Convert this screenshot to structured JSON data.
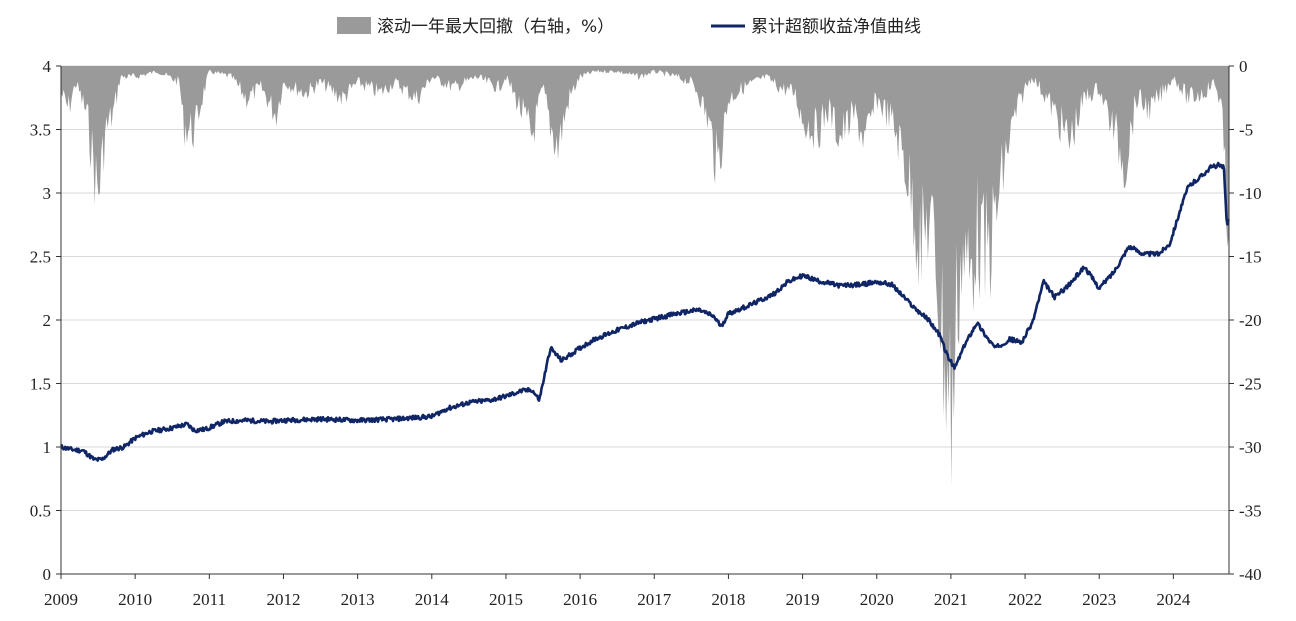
{
  "chart_data": {
    "type": "line",
    "title": "",
    "legend": {
      "placement": "top-center",
      "drawdown_label": "滚动一年最大回撤（右轴，%）",
      "nav_label": "累计超额收益净值曲线"
    },
    "colors": {
      "drawdown": "#9a9a9a",
      "nav": "#0f2566",
      "grid": "#d9d9d9"
    },
    "grid": true,
    "left_axis": {
      "ylim": [
        0,
        4
      ],
      "ticks": [
        "0",
        "0.5",
        "1",
        "1.5",
        "2",
        "2.5",
        "3",
        "3.5",
        "4"
      ]
    },
    "right_axis": {
      "ylim": [
        -40,
        0
      ],
      "ticks": [
        "-40",
        "-35",
        "-30",
        "-25",
        "-20",
        "-15",
        "-10",
        "-5",
        "0"
      ]
    },
    "x_axis": {
      "xlim": [
        2009.0,
        2024.75
      ],
      "ticks": [
        "2009",
        "2010",
        "2011",
        "2012",
        "2013",
        "2014",
        "2015",
        "2016",
        "2017",
        "2018",
        "2019",
        "2020",
        "2021",
        "2022",
        "2023",
        "2024"
      ]
    },
    "series": [
      {
        "name": "累计超额收益净值曲线",
        "axis": "left",
        "x": [
          2009.0,
          2009.15,
          2009.3,
          2009.45,
          2009.55,
          2009.7,
          2009.85,
          2010.0,
          2010.2,
          2010.5,
          2010.7,
          2010.8,
          2010.95,
          2011.2,
          2011.5,
          2011.8,
          2012.0,
          2012.5,
          2013.0,
          2013.5,
          2014.0,
          2014.2,
          2014.5,
          2014.8,
          2015.0,
          2015.2,
          2015.35,
          2015.45,
          2015.6,
          2015.75,
          2016.0,
          2016.2,
          2016.5,
          2016.8,
          2017.0,
          2017.3,
          2017.6,
          2017.8,
          2017.9,
          2018.0,
          2018.3,
          2018.6,
          2018.8,
          2019.0,
          2019.2,
          2019.5,
          2019.8,
          2020.0,
          2020.2,
          2020.5,
          2020.7,
          2020.85,
          2020.95,
          2021.05,
          2021.2,
          2021.35,
          2021.5,
          2021.6,
          2021.8,
          2021.95,
          2022.1,
          2022.25,
          2022.4,
          2022.6,
          2022.8,
          2023.0,
          2023.2,
          2023.4,
          2023.6,
          2023.8,
          2023.95,
          2024.1,
          2024.2,
          2024.35,
          2024.5,
          2024.6,
          2024.68,
          2024.72,
          2024.75
        ],
        "values": [
          1.0,
          0.98,
          0.97,
          0.9,
          0.9,
          0.98,
          1.0,
          1.07,
          1.12,
          1.15,
          1.18,
          1.13,
          1.14,
          1.2,
          1.21,
          1.2,
          1.21,
          1.22,
          1.21,
          1.22,
          1.24,
          1.3,
          1.35,
          1.37,
          1.4,
          1.44,
          1.45,
          1.37,
          1.78,
          1.68,
          1.78,
          1.85,
          1.92,
          1.98,
          2.01,
          2.05,
          2.08,
          2.03,
          1.95,
          2.05,
          2.12,
          2.2,
          2.3,
          2.35,
          2.31,
          2.27,
          2.28,
          2.3,
          2.28,
          2.1,
          2.0,
          1.88,
          1.72,
          1.62,
          1.82,
          1.98,
          1.85,
          1.78,
          1.85,
          1.82,
          1.98,
          2.3,
          2.18,
          2.28,
          2.42,
          2.25,
          2.38,
          2.58,
          2.52,
          2.52,
          2.6,
          2.88,
          3.05,
          3.12,
          3.2,
          3.22,
          3.2,
          2.75,
          2.8
        ]
      },
      {
        "name": "滚动一年最大回撤（右轴，%）",
        "axis": "right",
        "x": [
          2009.0,
          2009.1,
          2009.2,
          2009.35,
          2009.45,
          2009.5,
          2009.6,
          2009.7,
          2009.8,
          2010.0,
          2010.3,
          2010.6,
          2010.65,
          2010.8,
          2010.9,
          2011.0,
          2011.3,
          2011.5,
          2011.7,
          2011.9,
          2012.0,
          2012.3,
          2012.5,
          2012.8,
          2013.0,
          2013.3,
          2013.5,
          2013.8,
          2014.0,
          2014.3,
          2014.6,
          2014.9,
          2015.0,
          2015.2,
          2015.35,
          2015.5,
          2015.6,
          2015.7,
          2015.85,
          2016.0,
          2016.2,
          2016.5,
          2016.8,
          2017.0,
          2017.3,
          2017.5,
          2017.6,
          2017.75,
          2017.85,
          2018.0,
          2018.2,
          2018.5,
          2018.7,
          2018.9,
          2019.0,
          2019.2,
          2019.35,
          2019.5,
          2019.7,
          2019.85,
          2020.0,
          2020.2,
          2020.35,
          2020.5,
          2020.6,
          2020.7,
          2020.8,
          2020.9,
          2020.97,
          2021.02,
          2021.08,
          2021.15,
          2021.25,
          2021.35,
          2021.45,
          2021.55,
          2021.65,
          2021.75,
          2021.85,
          2022.0,
          2022.1,
          2022.3,
          2022.45,
          2022.6,
          2022.8,
          2023.0,
          2023.2,
          2023.35,
          2023.5,
          2023.7,
          2023.9,
          2024.0,
          2024.2,
          2024.4,
          2024.55,
          2024.65,
          2024.72,
          2024.75
        ],
        "values": [
          -2.5,
          -4.0,
          -1.5,
          -4.5,
          -9.5,
          -12.0,
          -6.0,
          -4.5,
          -1.0,
          -1.0,
          -0.5,
          -1.5,
          -5.5,
          -6.0,
          -3.0,
          -0.5,
          -1.0,
          -3.0,
          -2.0,
          -4.5,
          -1.5,
          -2.5,
          -1.5,
          -3.0,
          -1.5,
          -2.5,
          -1.5,
          -3.0,
          -1.0,
          -2.0,
          -1.0,
          -2.0,
          -1.0,
          -4.0,
          -6.5,
          -2.0,
          -5.5,
          -7.5,
          -3.0,
          -1.0,
          -0.5,
          -0.5,
          -1.0,
          -0.5,
          -1.0,
          -1.5,
          -2.5,
          -5.5,
          -9.5,
          -3.0,
          -2.0,
          -1.0,
          -2.0,
          -2.5,
          -5.0,
          -6.0,
          -4.0,
          -6.5,
          -4.5,
          -7.0,
          -3.0,
          -5.0,
          -8.0,
          -13.0,
          -17.0,
          -14.0,
          -18.0,
          -26.0,
          -30.0,
          -32.0,
          -22.0,
          -17.0,
          -20.0,
          -15.0,
          -18.0,
          -16.0,
          -12.0,
          -8.0,
          -5.0,
          -2.0,
          -1.0,
          -3.0,
          -5.0,
          -7.0,
          -3.0,
          -2.0,
          -6.0,
          -9.0,
          -3.0,
          -4.0,
          -2.0,
          -1.0,
          -3.0,
          -2.5,
          -1.5,
          -3.5,
          -15.0,
          -12.0
        ]
      }
    ]
  }
}
